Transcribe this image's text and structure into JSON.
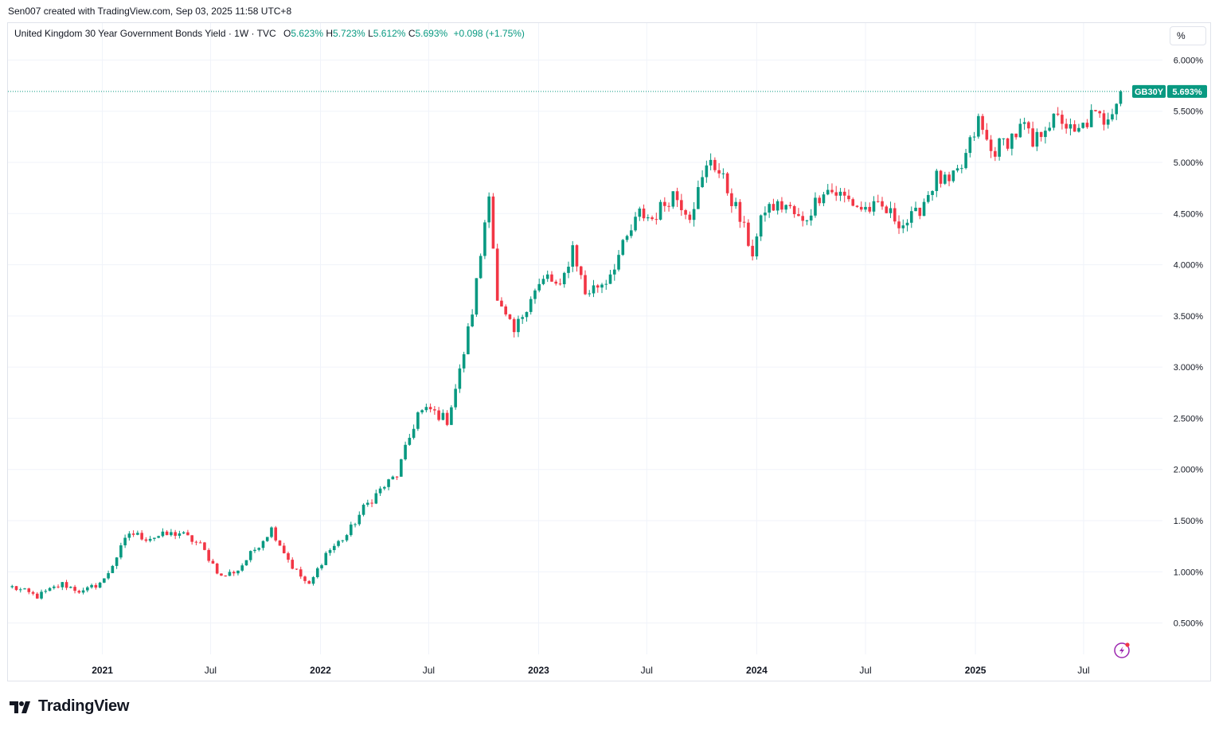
{
  "caption": "Sen007 created with TradingView.com, Sep 03, 2025 11:58 UTC+8",
  "legend": {
    "title": "United Kingdom 30 Year Government Bonds Yield · 1W · TVC",
    "o_label": "O",
    "o_value": "5.623%",
    "h_label": "H",
    "h_value": "5.723%",
    "l_label": "L",
    "l_value": "5.612%",
    "c_label": "C",
    "c_value": "5.693%",
    "change": "+0.098 (+1.75%)"
  },
  "scale_button": "%",
  "brand": "TradingView",
  "colors": {
    "up": "#089981",
    "down": "#f23645",
    "grid": "#f0f3fa",
    "axis_text": "#131722"
  },
  "icons": {
    "brand_logo": "tradingview-logo-icon",
    "lightning": "lightning-bolt-icon"
  },
  "chart_data": {
    "type": "candlestick",
    "symbol": "GB30Y",
    "interval": "1W",
    "last_price": 5.693,
    "last_price_label": "5.693%",
    "ylim": [
      0.24,
      6.26
    ],
    "yticks": [
      0.5,
      1.0,
      1.5,
      2.0,
      2.5,
      3.0,
      3.5,
      4.0,
      4.5,
      5.0,
      5.5,
      6.0
    ],
    "ytick_labels": [
      "0.500%",
      "1.000%",
      "1.500%",
      "2.000%",
      "2.500%",
      "3.000%",
      "3.500%",
      "4.000%",
      "4.500%",
      "5.000%",
      "5.500%",
      "6.000%"
    ],
    "xrange": [
      "2020-07-27",
      "2025-11-10"
    ],
    "xticks": [
      {
        "date": "2021-01-01",
        "label": "2021",
        "year": true
      },
      {
        "date": "2021-07-01",
        "label": "Jul",
        "year": false
      },
      {
        "date": "2022-01-01",
        "label": "2022",
        "year": true
      },
      {
        "date": "2022-07-01",
        "label": "Jul",
        "year": false
      },
      {
        "date": "2023-01-01",
        "label": "2023",
        "year": true
      },
      {
        "date": "2023-07-01",
        "label": "Jul",
        "year": false
      },
      {
        "date": "2024-01-01",
        "label": "2024",
        "year": true
      },
      {
        "date": "2024-07-01",
        "label": "Jul",
        "year": false
      },
      {
        "date": "2025-01-01",
        "label": "2025",
        "year": true
      },
      {
        "date": "2025-07-01",
        "label": "Jul",
        "year": false
      }
    ],
    "grid": true,
    "keypoints": [
      {
        "date": "2020-08-03",
        "close": 0.85
      },
      {
        "date": "2020-09-14",
        "close": 0.76
      },
      {
        "date": "2020-10-26",
        "close": 0.88
      },
      {
        "date": "2020-11-30",
        "close": 0.8
      },
      {
        "date": "2021-01-04",
        "close": 0.92
      },
      {
        "date": "2021-02-15",
        "close": 1.38
      },
      {
        "date": "2021-03-15",
        "close": 1.33
      },
      {
        "date": "2021-05-10",
        "close": 1.38
      },
      {
        "date": "2021-06-14",
        "close": 1.26
      },
      {
        "date": "2021-07-19",
        "close": 0.95
      },
      {
        "date": "2021-08-16",
        "close": 1.02
      },
      {
        "date": "2021-10-11",
        "close": 1.42
      },
      {
        "date": "2021-11-15",
        "close": 1.05
      },
      {
        "date": "2021-12-13",
        "close": 0.86
      },
      {
        "date": "2022-01-10",
        "close": 1.18
      },
      {
        "date": "2022-02-14",
        "close": 1.36
      },
      {
        "date": "2022-03-14",
        "close": 1.62
      },
      {
        "date": "2022-04-11",
        "close": 1.8
      },
      {
        "date": "2022-05-09",
        "close": 1.95
      },
      {
        "date": "2022-06-13",
        "close": 2.55
      },
      {
        "date": "2022-07-04",
        "close": 2.58
      },
      {
        "date": "2022-08-01",
        "close": 2.48
      },
      {
        "date": "2022-08-22",
        "close": 2.95
      },
      {
        "date": "2022-09-12",
        "close": 3.55
      },
      {
        "date": "2022-09-26",
        "close": 4.1
      },
      {
        "date": "2022-10-10",
        "close": 4.75
      },
      {
        "date": "2022-10-24",
        "close": 3.62
      },
      {
        "date": "2022-11-21",
        "close": 3.33
      },
      {
        "date": "2022-12-19",
        "close": 3.7
      },
      {
        "date": "2023-01-16",
        "close": 3.88
      },
      {
        "date": "2023-02-06",
        "close": 3.75
      },
      {
        "date": "2023-02-27",
        "close": 4.18
      },
      {
        "date": "2023-03-20",
        "close": 3.72
      },
      {
        "date": "2023-04-24",
        "close": 3.85
      },
      {
        "date": "2023-05-29",
        "close": 4.25
      },
      {
        "date": "2023-06-19",
        "close": 4.5
      },
      {
        "date": "2023-07-10",
        "close": 4.45
      },
      {
        "date": "2023-08-14",
        "close": 4.7
      },
      {
        "date": "2023-09-11",
        "close": 4.5
      },
      {
        "date": "2023-10-02",
        "close": 4.82
      },
      {
        "date": "2023-10-16",
        "close": 5.05
      },
      {
        "date": "2023-11-06",
        "close": 4.82
      },
      {
        "date": "2023-11-27",
        "close": 4.55
      },
      {
        "date": "2023-12-25",
        "close": 4.12
      },
      {
        "date": "2024-01-15",
        "close": 4.55
      },
      {
        "date": "2024-02-19",
        "close": 4.58
      },
      {
        "date": "2024-03-18",
        "close": 4.4
      },
      {
        "date": "2024-04-22",
        "close": 4.75
      },
      {
        "date": "2024-05-20",
        "close": 4.68
      },
      {
        "date": "2024-06-24",
        "close": 4.55
      },
      {
        "date": "2024-07-29",
        "close": 4.55
      },
      {
        "date": "2024-09-02",
        "close": 4.4
      },
      {
        "date": "2024-09-23",
        "close": 4.48
      },
      {
        "date": "2024-10-28",
        "close": 4.85
      },
      {
        "date": "2024-11-18",
        "close": 4.78
      },
      {
        "date": "2024-12-09",
        "close": 4.95
      },
      {
        "date": "2025-01-06",
        "close": 5.4
      },
      {
        "date": "2025-01-27",
        "close": 5.1
      },
      {
        "date": "2025-02-24",
        "close": 5.22
      },
      {
        "date": "2025-03-24",
        "close": 5.35
      },
      {
        "date": "2025-04-07",
        "close": 5.15
      },
      {
        "date": "2025-04-28",
        "close": 5.38
      },
      {
        "date": "2025-05-26",
        "close": 5.42
      },
      {
        "date": "2025-06-16",
        "close": 5.25
      },
      {
        "date": "2025-07-14",
        "close": 5.45
      },
      {
        "date": "2025-08-04",
        "close": 5.42
      },
      {
        "date": "2025-08-18",
        "close": 5.55
      },
      {
        "date": "2025-09-01",
        "close": 5.693
      }
    ]
  }
}
